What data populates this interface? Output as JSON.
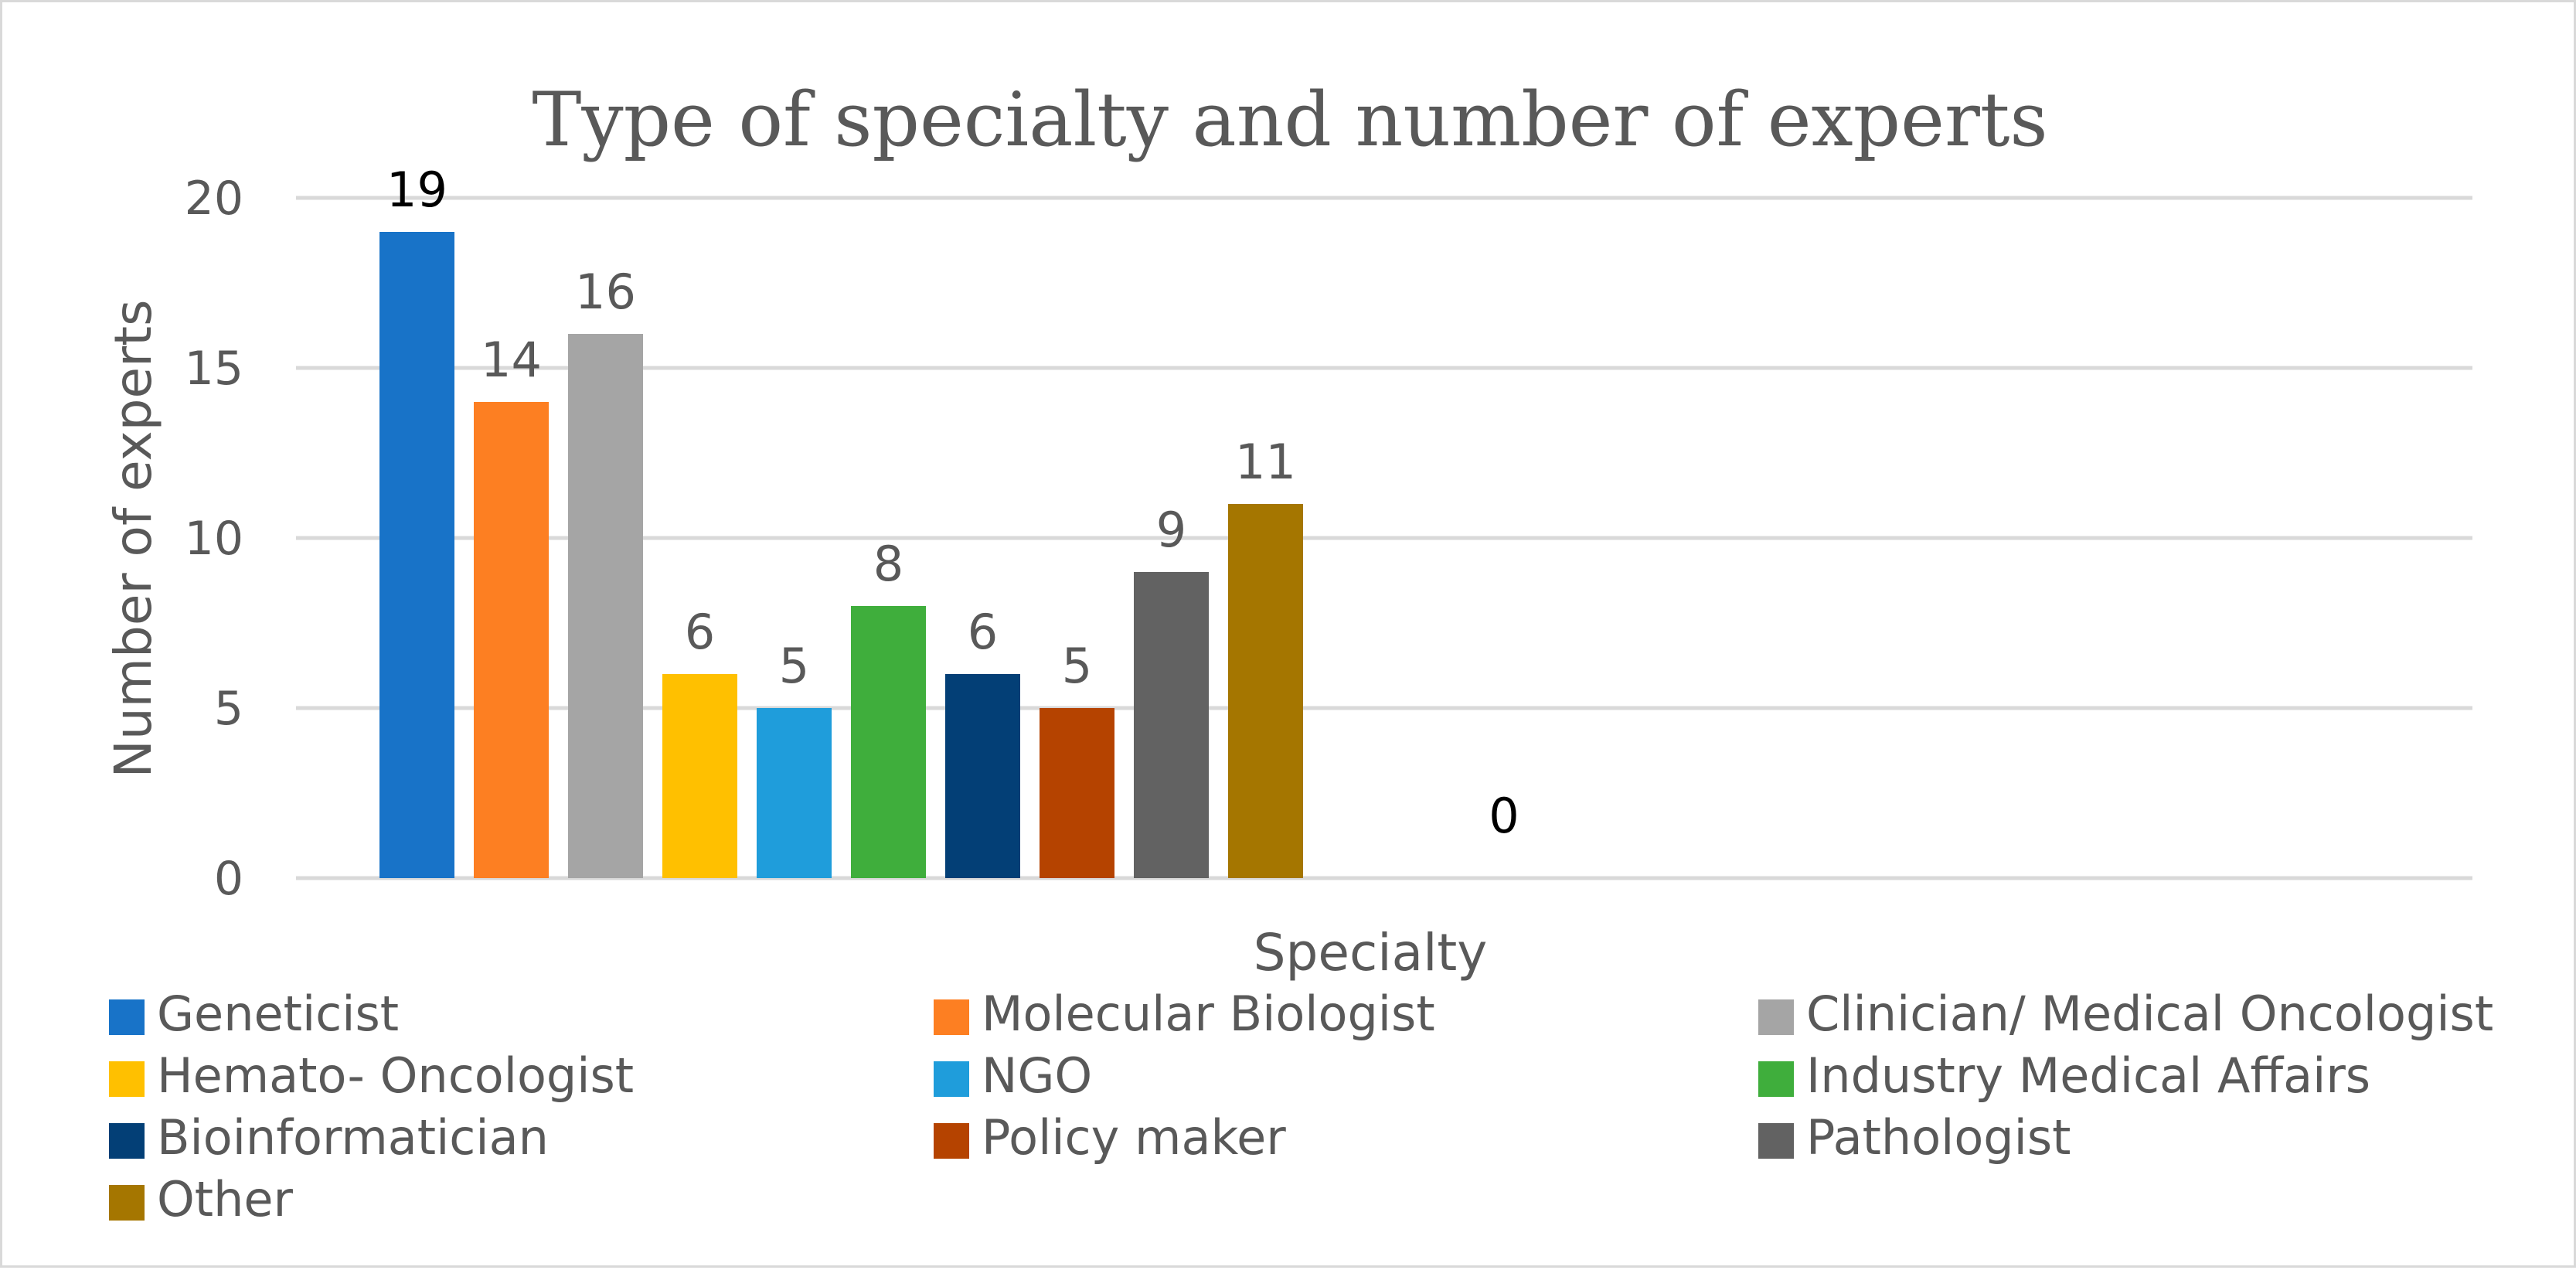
{
  "chart_data": {
    "type": "bar",
    "title": "Type of specialty and number of experts",
    "xlabel": "Specialty",
    "ylabel": "Number of experts",
    "ylim": [
      0,
      20
    ],
    "yticks": [
      0,
      5,
      10,
      15,
      20
    ],
    "grid": true,
    "legend_position": "bottom",
    "series": [
      {
        "name": "Geneticist",
        "value": 19,
        "color": "#1873c8"
      },
      {
        "name": "Molecular Biologist",
        "value": 14,
        "color": "#fd7f22"
      },
      {
        "name": "Clinician/ Medical Oncologist",
        "value": 16,
        "color": "#a5a5a5"
      },
      {
        "name": "Hemato- Oncologist",
        "value": 6,
        "color": "#ffc000"
      },
      {
        "name": "NGO",
        "value": 5,
        "color": "#1f9ddb"
      },
      {
        "name": "Industry Medical Affairs",
        "value": 8,
        "color": "#3fae3c"
      },
      {
        "name": "Bioinformatician",
        "value": 6,
        "color": "#033f76"
      },
      {
        "name": "Policy maker",
        "value": 5,
        "color": "#b54300"
      },
      {
        "name": "Pathologist",
        "value": 9,
        "color": "#626262"
      },
      {
        "name": "Other",
        "value": 11,
        "color": "#a57600"
      }
    ],
    "extra_label": "0"
  }
}
